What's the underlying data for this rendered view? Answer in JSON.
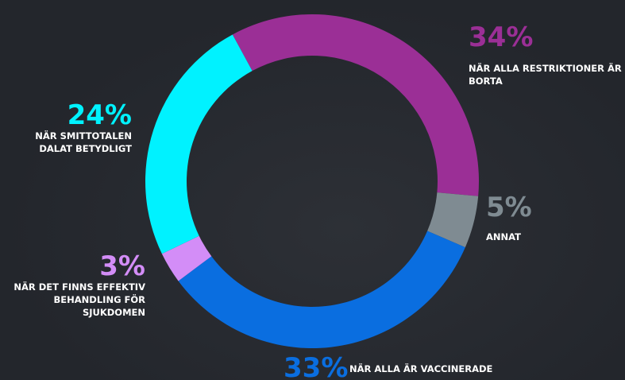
{
  "chart_data": {
    "type": "donut",
    "categories": [
      "NÄR ALLA RESTRIKTIONER ÄR BORTA",
      "ANNAT",
      "NÄR ALLA ÄR VACCINERADE",
      "NÄR DET FINNS EFFEKTIV BEHANDLING FÖR SJUKDOMEN",
      "NÄR SMITTOTALEN DALAT BETYDLIGT"
    ],
    "values": [
      34,
      5,
      33,
      3,
      24
    ],
    "value_labels": [
      "34%",
      "5%",
      "33%",
      "3%",
      "24%"
    ],
    "colors": [
      "#9b2f96",
      "#7f8b92",
      "#0a6ee0",
      "#d38df7",
      "#00f2ff"
    ]
  }
}
